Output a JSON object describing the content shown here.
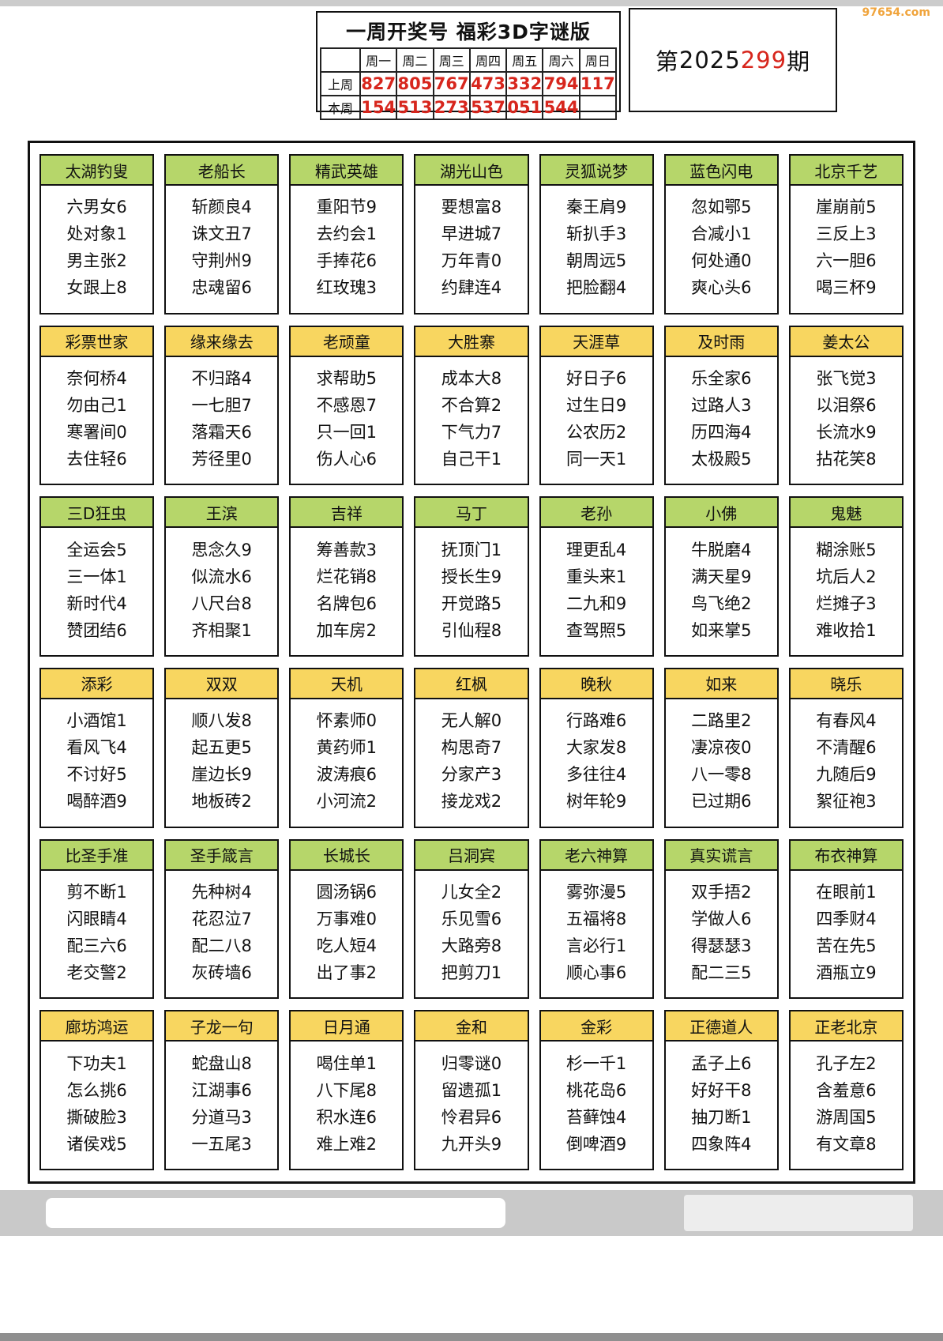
{
  "watermark": {
    "text": "97654.com",
    "color": "#f0a43c"
  },
  "header": {
    "title": "一周开奖号 福彩3D字谜版",
    "issue": {
      "prefix": "第",
      "year": "2025",
      "number": "299",
      "suffix": "期"
    },
    "week_table": {
      "day_headers": [
        "周一",
        "周二",
        "周三",
        "周四",
        "周五",
        "周六",
        "周日"
      ],
      "rows": [
        {
          "label": "上周",
          "values": [
            "827",
            "805",
            "767",
            "473",
            "332",
            "794",
            "117"
          ]
        },
        {
          "label": "本周",
          "values": [
            "154",
            "513",
            "273",
            "537",
            "051",
            "544",
            ""
          ]
        }
      ]
    }
  },
  "colors": {
    "green_header": "#b6d66a",
    "yellow_header": "#f8d660",
    "red_number": "#d7261d",
    "watermark_orange": "#f0a43c"
  },
  "card_rows": [
    {
      "color": "green",
      "cards": [
        {
          "name": "太湖钓叟",
          "lines": [
            "六男女6",
            "处对象1",
            "男主张2",
            "女跟上8"
          ]
        },
        {
          "name": "老船长",
          "lines": [
            "斩颜良4",
            "诛文丑7",
            "守荆州9",
            "忠魂留6"
          ]
        },
        {
          "name": "精武英雄",
          "lines": [
            "重阳节9",
            "去约会1",
            "手捧花6",
            "红玫瑰3"
          ]
        },
        {
          "name": "湖光山色",
          "lines": [
            "要想富8",
            "早进城7",
            "万年青0",
            "约肆连4"
          ]
        },
        {
          "name": "灵狐说梦",
          "lines": [
            "秦王肩9",
            "斩扒手3",
            "朝周远5",
            "把脸翻4"
          ]
        },
        {
          "name": "蓝色闪电",
          "lines": [
            "忽如鄂5",
            "合减小1",
            "何处通0",
            "爽心头6"
          ]
        },
        {
          "name": "北京千艺",
          "lines": [
            "崖崩前5",
            "三反上3",
            "六一胆6",
            "喝三杯9"
          ]
        }
      ]
    },
    {
      "color": "yellow",
      "cards": [
        {
          "name": "彩票世家",
          "lines": [
            "奈何桥4",
            "勿由己1",
            "寒署间0",
            "去住轻6"
          ]
        },
        {
          "name": "缘来缘去",
          "lines": [
            "不归路4",
            "一七胆7",
            "落霜天6",
            "芳径里0"
          ]
        },
        {
          "name": "老顽童",
          "lines": [
            "求帮助5",
            "不感恩7",
            "只一回1",
            "伤人心6"
          ]
        },
        {
          "name": "大胜寨",
          "lines": [
            "成本大8",
            "不合算2",
            "下气力7",
            "自己干1"
          ]
        },
        {
          "name": "天涯草",
          "lines": [
            "好日子6",
            "过生日9",
            "公农历2",
            "同一天1"
          ]
        },
        {
          "name": "及时雨",
          "lines": [
            "乐全家6",
            "过路人3",
            "历四海4",
            "太极殿5"
          ]
        },
        {
          "name": "姜太公",
          "lines": [
            "张飞觉3",
            "以泪祭6",
            "长流水9",
            "拈花笑8"
          ]
        }
      ]
    },
    {
      "color": "green",
      "cards": [
        {
          "name": "三D狂虫",
          "lines": [
            "全运会5",
            "三一体1",
            "新时代4",
            "赞团结6"
          ]
        },
        {
          "name": "王滨",
          "lines": [
            "思念久9",
            "似流水6",
            "八尺台8",
            "齐相聚1"
          ]
        },
        {
          "name": "吉祥",
          "lines": [
            "筹善款3",
            "烂花销8",
            "名牌包6",
            "加车房2"
          ]
        },
        {
          "name": "马丁",
          "lines": [
            "抚顶门1",
            "授长生9",
            "开觉路5",
            "引仙程8"
          ]
        },
        {
          "name": "老孙",
          "lines": [
            "理更乱4",
            "重头来1",
            "二九和9",
            "查驾照5"
          ]
        },
        {
          "name": "小佛",
          "lines": [
            "牛脱磨4",
            "满天星9",
            "鸟飞绝2",
            "如来掌5"
          ]
        },
        {
          "name": "鬼魅",
          "lines": [
            "糊涂账5",
            "坑后人2",
            "烂摊子3",
            "难收拾1"
          ]
        }
      ]
    },
    {
      "color": "yellow",
      "cards": [
        {
          "name": "添彩",
          "lines": [
            "小酒馆1",
            "看风飞4",
            "不讨好5",
            "喝醉酒9"
          ]
        },
        {
          "name": "双双",
          "lines": [
            "顺八发8",
            "起五更5",
            "崖边长9",
            "地板砖2"
          ]
        },
        {
          "name": "天机",
          "lines": [
            "怀素师0",
            "黄药师1",
            "波涛痕6",
            "小河流2"
          ]
        },
        {
          "name": "红枫",
          "lines": [
            "无人解0",
            "构思奇7",
            "分家产3",
            "接龙戏2"
          ]
        },
        {
          "name": "晚秋",
          "lines": [
            "行路难6",
            "大家发8",
            "多往往4",
            "树年轮9"
          ]
        },
        {
          "name": "如来",
          "lines": [
            "二路里2",
            "凄凉夜0",
            "八一零8",
            "已过期6"
          ]
        },
        {
          "name": "晓乐",
          "lines": [
            "有春风4",
            "不清醒6",
            "九随后9",
            "絮征袍3"
          ]
        }
      ]
    },
    {
      "color": "green",
      "cards": [
        {
          "name": "比圣手准",
          "lines": [
            "剪不断1",
            "闪眼睛4",
            "配三六6",
            "老交警2"
          ]
        },
        {
          "name": "圣手箴言",
          "lines": [
            "先种树4",
            "花忍泣7",
            "配二八8",
            "灰砖墙6"
          ]
        },
        {
          "name": "长城长",
          "lines": [
            "圆汤锅6",
            "万事难0",
            "吃人短4",
            "出了事2"
          ]
        },
        {
          "name": "吕洞宾",
          "lines": [
            "儿女全2",
            "乐见雪6",
            "大路旁8",
            "把剪刀1"
          ]
        },
        {
          "name": "老六神算",
          "lines": [
            "雾弥漫5",
            "五福将8",
            "言必行1",
            "顺心事6"
          ]
        },
        {
          "name": "真实谎言",
          "lines": [
            "双手捂2",
            "学做人6",
            "得瑟瑟3",
            "配二三5"
          ]
        },
        {
          "name": "布衣神算",
          "lines": [
            "在眼前1",
            "四季财4",
            "苦在先5",
            "酒瓶立9"
          ]
        }
      ]
    },
    {
      "color": "yellow",
      "cards": [
        {
          "name": "廊坊鸿运",
          "lines": [
            "下功夫1",
            "怎么挑6",
            "撕破脸3",
            "诸侯戏5"
          ]
        },
        {
          "name": "子龙一句",
          "lines": [
            "蛇盘山8",
            "江湖事6",
            "分道马3",
            "一五尾3"
          ]
        },
        {
          "name": "日月通",
          "lines": [
            "喝住单1",
            "八下尾8",
            "积水连6",
            "难上难2"
          ]
        },
        {
          "name": "金和",
          "lines": [
            "归零谜0",
            "留遗孤1",
            "怜君异6",
            "九开头9"
          ]
        },
        {
          "name": "金彩",
          "lines": [
            "杉一千1",
            "桃花岛6",
            "苔藓蚀4",
            "倒啤酒9"
          ]
        },
        {
          "name": "正德道人",
          "lines": [
            "孟子上6",
            "好好干8",
            "抽刀断1",
            "四象阵4"
          ]
        },
        {
          "name": "正老北京",
          "lines": [
            "孔子左2",
            "含羞意6",
            "游周国5",
            "有文章8"
          ]
        }
      ]
    }
  ]
}
